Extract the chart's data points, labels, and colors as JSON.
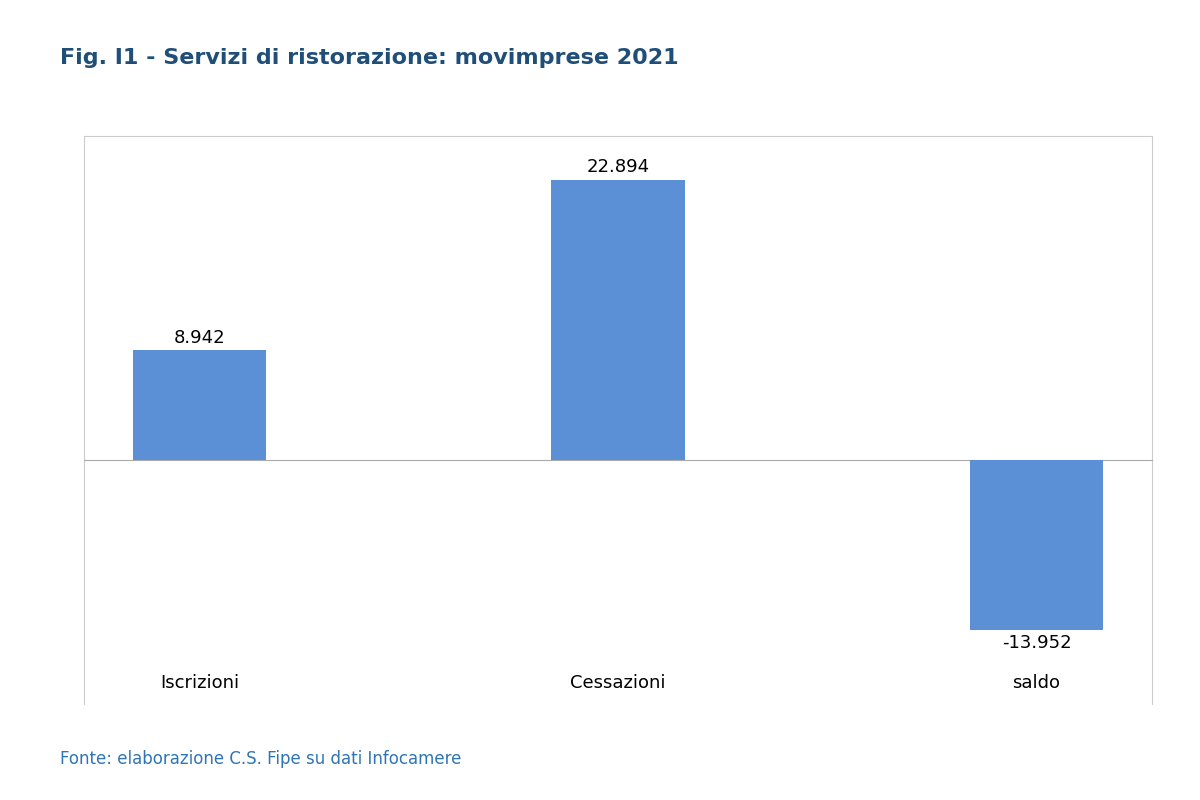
{
  "title": "Fig. I1 - Servizi di ristorazione: movimprese 2021",
  "categories": [
    "Iscrizioni",
    "Cessazioni",
    "saldo"
  ],
  "values": [
    8942,
    22894,
    -13952
  ],
  "labels": [
    "8.942",
    "22.894",
    "-13.952"
  ],
  "bar_color": "#5B8FD6",
  "title_color": "#1F4E79",
  "source_text": "Fonte: elaborazione C.S. Fipe su dati Infocamere",
  "source_color": "#2E75B6",
  "background_color": "#FFFFFF",
  "plot_background": "#FFFFFF",
  "ylim_min": -20000,
  "ylim_max": 26500,
  "label_fontsize": 13,
  "title_fontsize": 16,
  "category_fontsize": 13,
  "source_fontsize": 12,
  "bar_width": 0.32
}
